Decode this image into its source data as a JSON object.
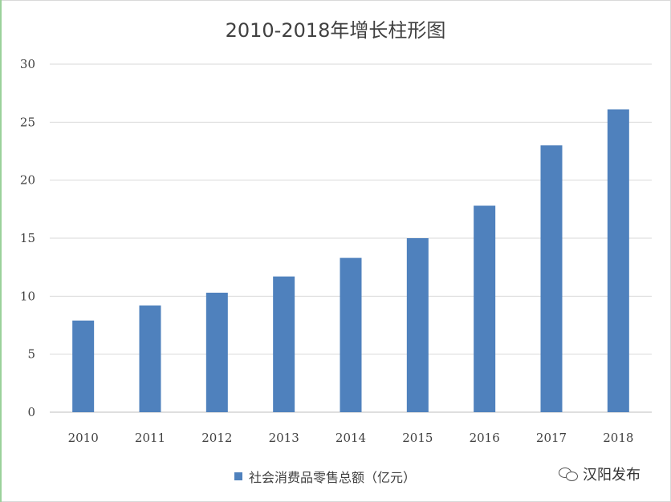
{
  "chart_data": {
    "type": "bar",
    "title": "2010-2018年增长柱形图",
    "categories": [
      "2010",
      "2011",
      "2012",
      "2013",
      "2014",
      "2015",
      "2016",
      "2017",
      "2018"
    ],
    "series": [
      {
        "name": "社会消费品零售总额（亿元）",
        "values": [
          7.9,
          9.2,
          10.3,
          11.7,
          13.3,
          15.0,
          17.8,
          23.0,
          26.1
        ]
      }
    ],
    "ylim": [
      0,
      30
    ],
    "yticks": [
      0,
      5,
      10,
      15,
      20,
      25,
      30
    ],
    "grid": true,
    "legend": "bottom",
    "colors": {
      "bar": "#4f81bd",
      "grid": "#d9d9d9",
      "axis": "#bfbfbf"
    }
  },
  "watermark": {
    "text": "汉阳发布",
    "icon": "wechat-icon"
  }
}
